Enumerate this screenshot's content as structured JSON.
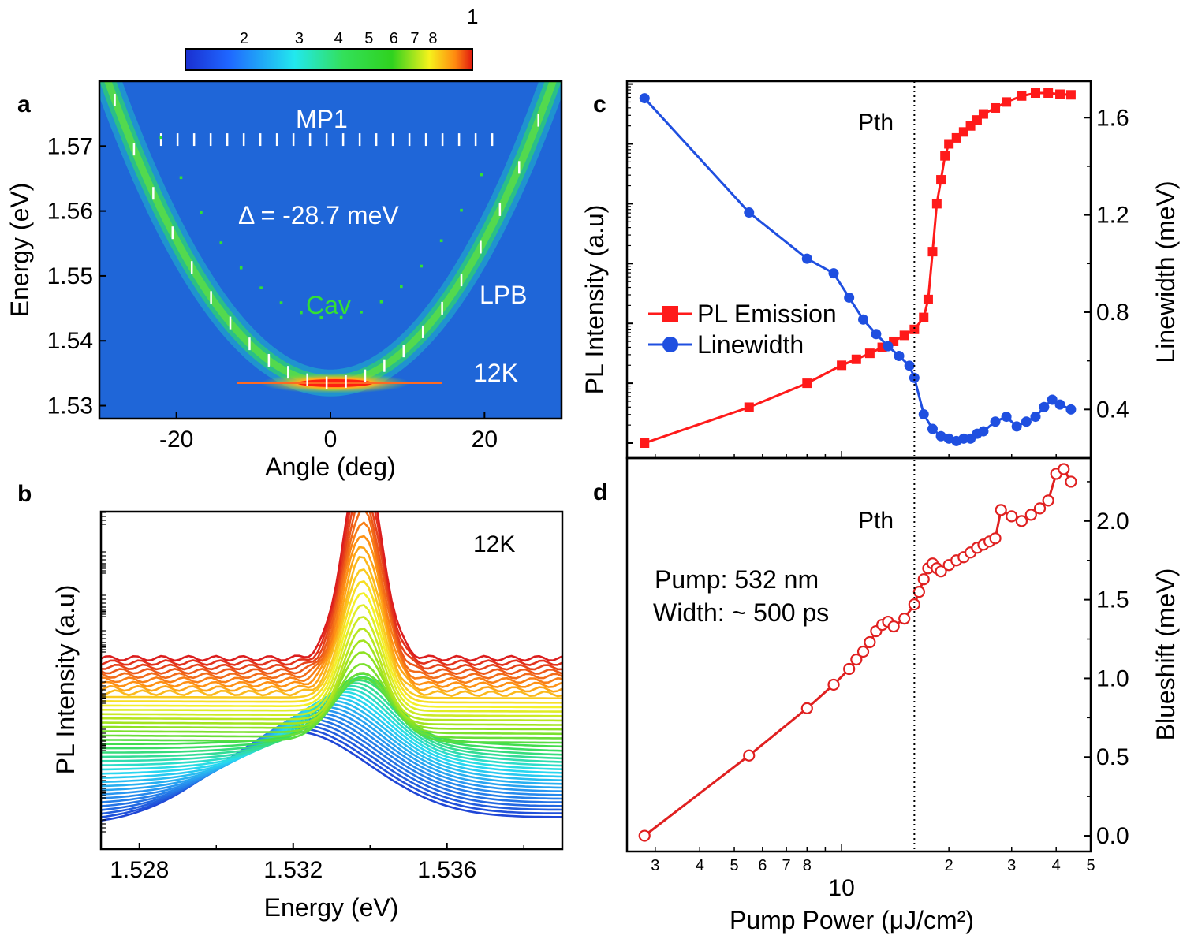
{
  "colors": {
    "pl_emission": "#ff1a1a",
    "linewidth": "#1f4fe0",
    "blueshift": "#e02020",
    "map_background": "#1f66d8",
    "mode_markers": "#ffffff",
    "cavity_markers": "#33e033"
  },
  "chart_data": [
    {
      "id": "a",
      "type": "heatmap",
      "panel_label": "a",
      "title": "",
      "xlabel": "Angle (deg)",
      "ylabel": "Energy (eV)",
      "xlim": [
        -30,
        30
      ],
      "ylim": [
        1.528,
        1.58
      ],
      "x_ticks": [
        -20,
        0,
        20
      ],
      "y_ticks": [
        1.53,
        1.54,
        1.55,
        1.56,
        1.57
      ],
      "colorbar": {
        "max_label": "1",
        "tick_labels": [
          "2",
          "3",
          "4",
          "5",
          "6",
          "7",
          "8"
        ],
        "scale": "log"
      },
      "annotations": {
        "mp1": "MP1",
        "detuning": "Δ = -28.7 meV",
        "cav": "Cav",
        "lpb": "LPB",
        "temperature": "12K"
      },
      "lpb_min_energy": 1.5335,
      "mp1_energy": 1.571,
      "cavity_min_energy": 1.5435
    },
    {
      "id": "b",
      "type": "line",
      "panel_label": "b",
      "xlabel": "Energy (eV)",
      "ylabel": "PL  Intensity (a.u)",
      "xlim": [
        1.527,
        1.539
      ],
      "x_ticks": [
        "1.528",
        "1.532",
        "1.536"
      ],
      "annotation": "12K",
      "peak_energy": 1.5338,
      "low_power_peak_energy": 1.532,
      "curve_count": 40
    },
    {
      "id": "c",
      "type": "line",
      "panel_label": "c",
      "xlabel": "Pump Power (μJ/cm²)",
      "ylabel": "PL Intensity (a.u)",
      "y2label": "Linewidth (meV)",
      "xscale": "log",
      "xlim": [
        2.5,
        50
      ],
      "y2lim": [
        0.2,
        1.75
      ],
      "y2_ticks": [
        "0.4",
        "0.8",
        "1.2",
        "1.6"
      ],
      "threshold_label": "Pth",
      "threshold_power": 16,
      "legend": [
        "PL Emission",
        "Linewidth"
      ],
      "series": [
        {
          "name": "PL Emission",
          "axis": "left-log",
          "x": [
            2.8,
            5.5,
            8,
            10,
            11,
            12,
            13,
            14,
            15,
            16,
            17,
            17.5,
            18,
            18.5,
            19,
            19.5,
            20,
            21,
            22,
            23,
            24,
            25,
            27,
            29,
            32,
            35,
            38,
            41,
            44
          ],
          "values": [
            0.0,
            0.6,
            1.0,
            1.3,
            1.4,
            1.5,
            1.6,
            1.7,
            1.8,
            1.9,
            2.1,
            2.4,
            3.2,
            4.0,
            4.4,
            4.8,
            5.0,
            5.1,
            5.2,
            5.3,
            5.4,
            5.5,
            5.6,
            5.7,
            5.8,
            5.85,
            5.85,
            5.83,
            5.82
          ]
        },
        {
          "name": "Linewidth",
          "axis": "right",
          "x": [
            2.8,
            5.5,
            8,
            9.5,
            10.5,
            11.5,
            12.5,
            13.5,
            14.5,
            15.5,
            16,
            17,
            18,
            19,
            20,
            21,
            22,
            23,
            24,
            25,
            27,
            29,
            31,
            33,
            35,
            37,
            39,
            41,
            44
          ],
          "values": [
            1.68,
            1.21,
            1.02,
            0.96,
            0.86,
            0.77,
            0.71,
            0.66,
            0.62,
            0.58,
            0.53,
            0.38,
            0.32,
            0.29,
            0.28,
            0.27,
            0.28,
            0.28,
            0.3,
            0.31,
            0.35,
            0.37,
            0.33,
            0.35,
            0.37,
            0.41,
            0.44,
            0.42,
            0.4
          ]
        }
      ]
    },
    {
      "id": "d",
      "type": "scatter",
      "panel_label": "d",
      "xlabel": "Pump Power (μJ/cm²)",
      "ylabel": "Blueshift (meV)",
      "xscale": "log",
      "xlim": [
        2.5,
        50
      ],
      "ylim": [
        -0.1,
        2.4
      ],
      "y_ticks": [
        "0.0",
        "0.5",
        "1.0",
        "1.5",
        "2.0"
      ],
      "x_tick_labels": [
        "3",
        "4",
        "5",
        "6",
        "7",
        "8",
        "10",
        "2",
        "3",
        "4",
        "5"
      ],
      "threshold_label": "Pth",
      "annotation_lines": [
        "Pump: 532 nm",
        "Width: ~ 500 ps"
      ],
      "series": [
        {
          "name": "Blueshift",
          "x": [
            2.8,
            5.5,
            8,
            9.5,
            10.5,
            11,
            11.5,
            12,
            12.5,
            13,
            13.5,
            14,
            15,
            16,
            16.5,
            17,
            17.5,
            18,
            18.5,
            19,
            20,
            21,
            22,
            23,
            24,
            25,
            26,
            27,
            28,
            30,
            32,
            34,
            36,
            38,
            40,
            42,
            44
          ],
          "values": [
            0.0,
            0.51,
            0.81,
            0.96,
            1.06,
            1.12,
            1.17,
            1.23,
            1.3,
            1.34,
            1.36,
            1.33,
            1.38,
            1.47,
            1.55,
            1.63,
            1.7,
            1.73,
            1.7,
            1.68,
            1.72,
            1.75,
            1.77,
            1.8,
            1.83,
            1.85,
            1.87,
            1.89,
            2.07,
            2.03,
            2.0,
            2.04,
            2.08,
            2.13,
            2.3,
            2.33,
            2.25
          ]
        }
      ]
    }
  ]
}
